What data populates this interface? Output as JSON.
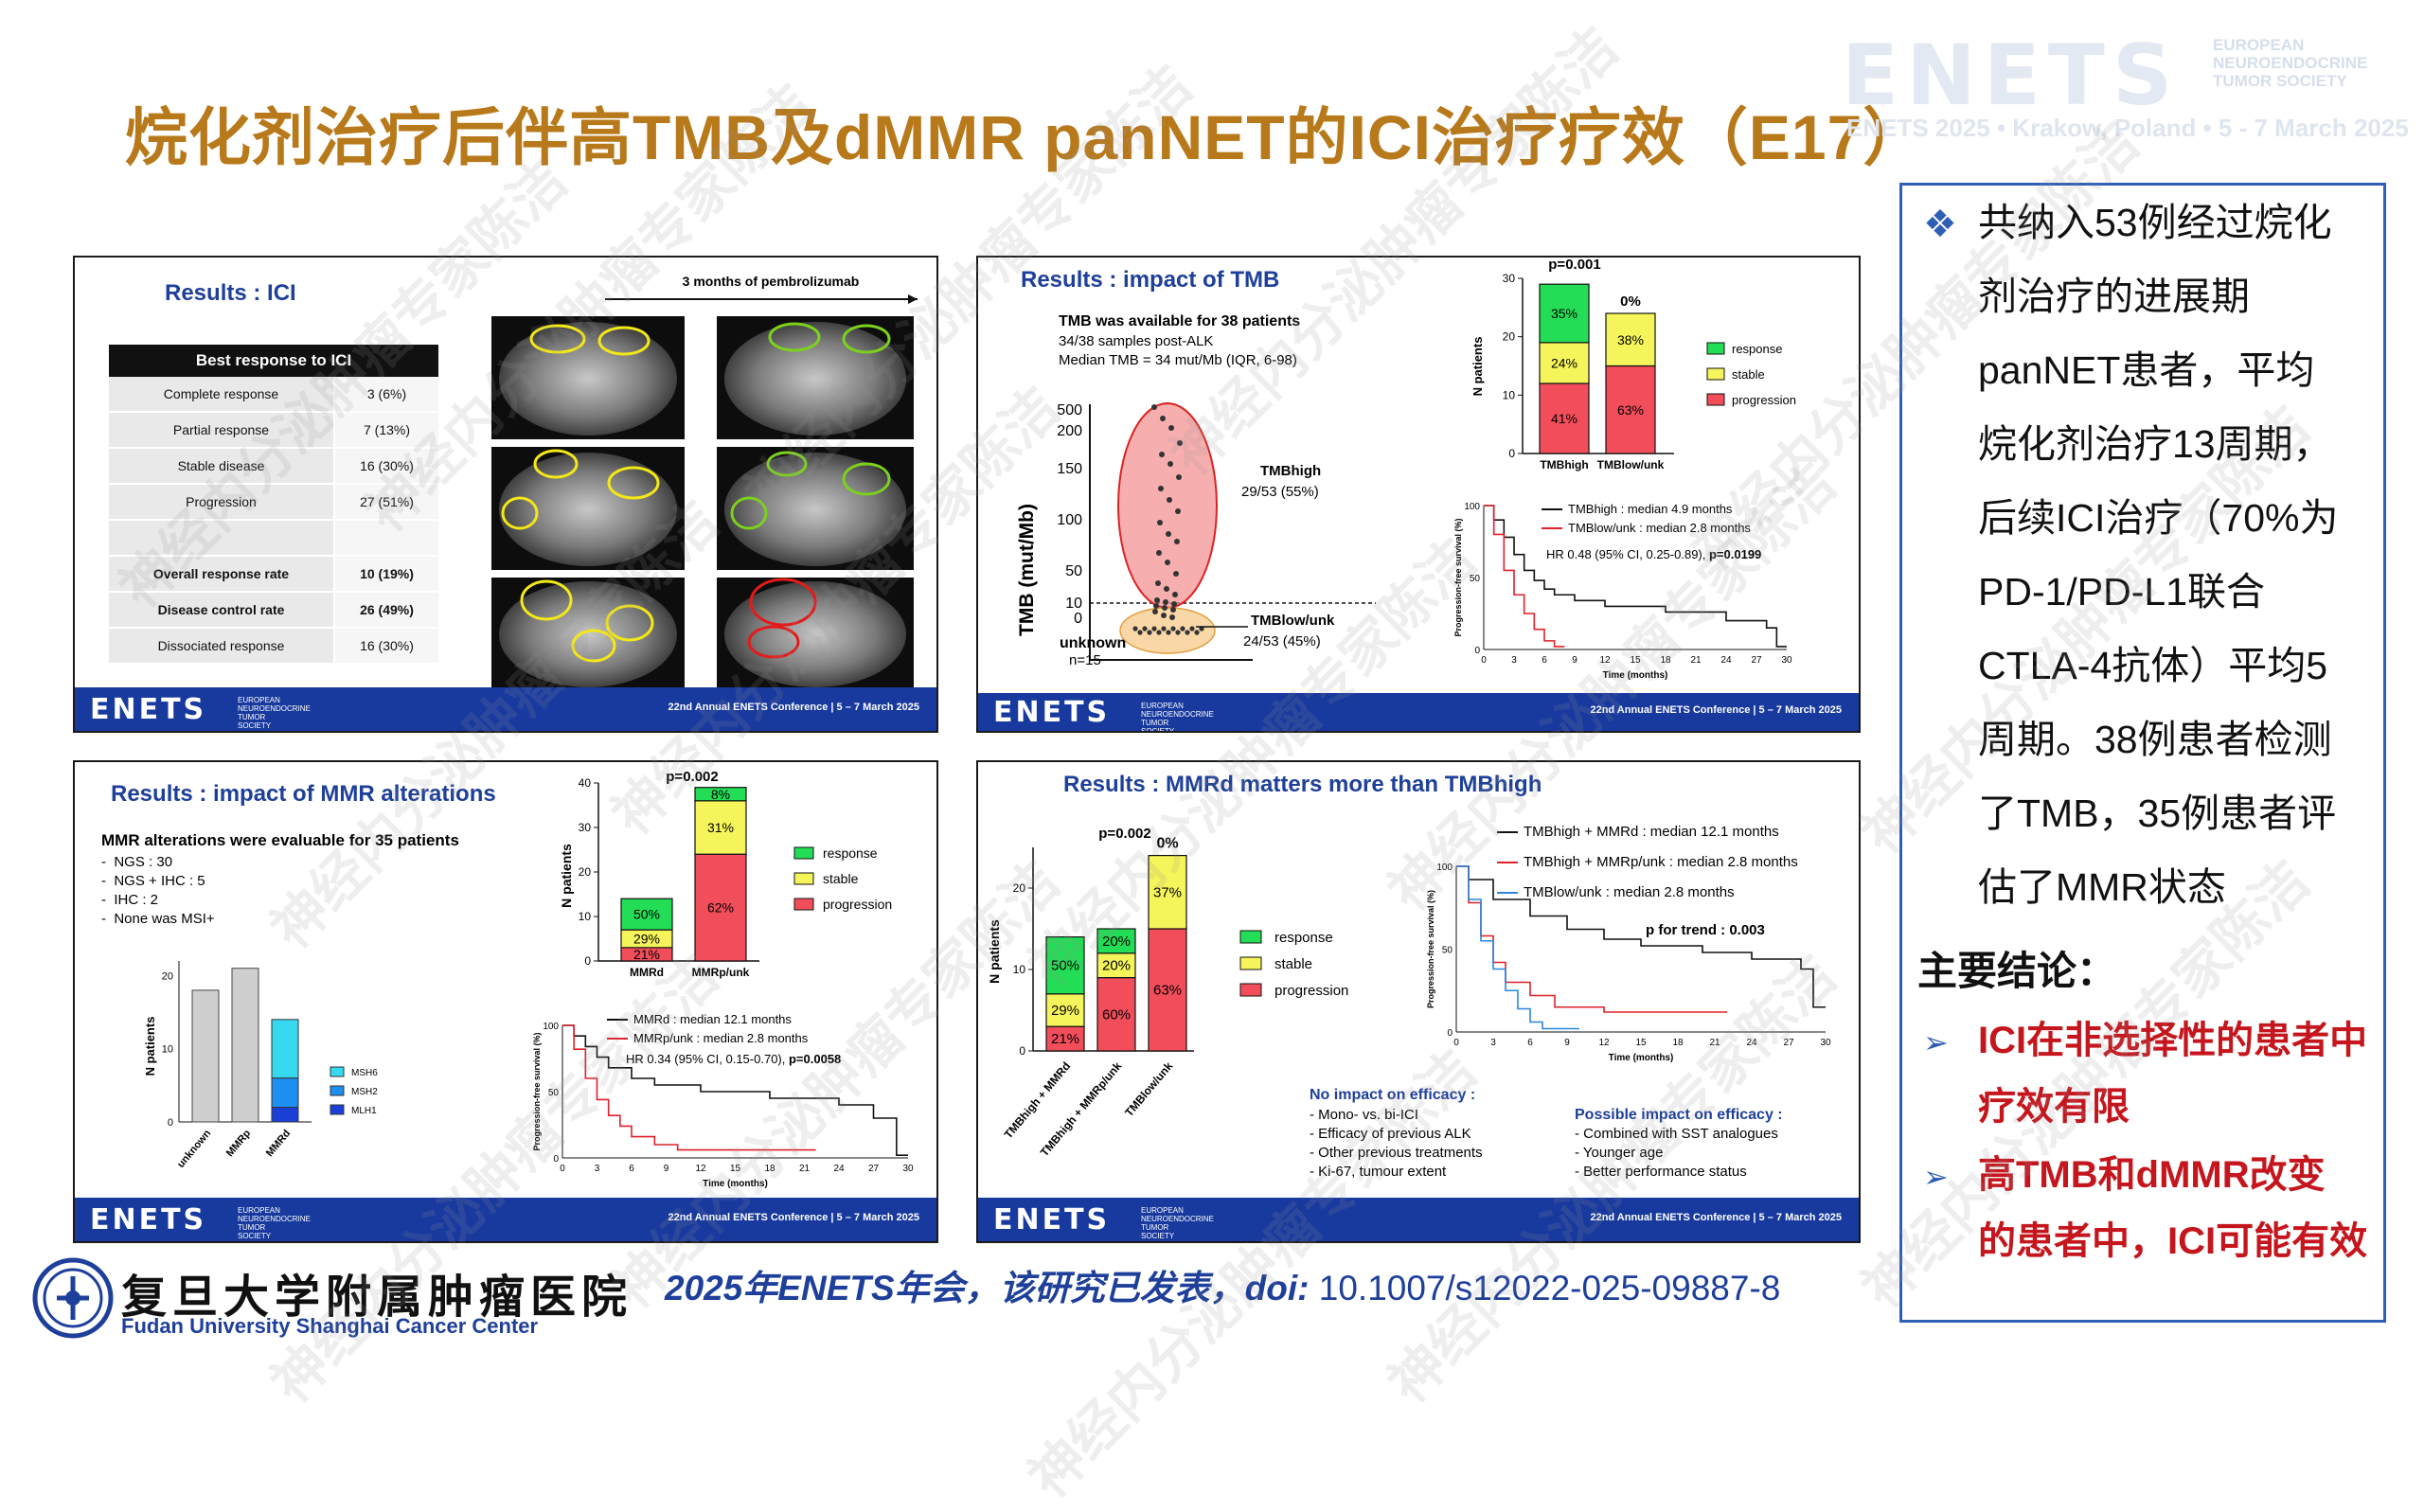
{
  "title": "烷化剂治疗后伴高TMB及dMMR panNET的ICI治疗疗效（E17）",
  "header": {
    "brand": "ENETS",
    "society": [
      "EUROPEAN",
      "NEUROENDOCRINE",
      "TUMOR SOCIETY"
    ],
    "event": "ENETS 2025  •  Krakow, Poland  •  5 - 7 March 2025"
  },
  "watermark": "神经内分泌肿瘤专家陈洁",
  "panel_footer": {
    "brand": "ENETS",
    "society": "EUROPEAN NEUROENDOCRINE TUMOR SOCIETY",
    "conference": "22nd Annual ENETS Conference | 5 – 7 March 2025"
  },
  "panel1": {
    "heading": "Results : ICI",
    "scan_label": "3 months of pembrolizumab",
    "table_header": "Best response to ICI",
    "rows": [
      {
        "label": "Complete response",
        "value": "3 (6%)"
      },
      {
        "label": "Partial response",
        "value": "7 (13%)"
      },
      {
        "label": "Stable disease",
        "value": "16 (30%)"
      },
      {
        "label": "Progression",
        "value": "27 (51%)"
      },
      {
        "label": "",
        "value": ""
      },
      {
        "label": "Overall response rate",
        "value": "10 (19%)"
      },
      {
        "label": "Disease control rate",
        "value": "26 (49%)"
      },
      {
        "label": "Dissociated response",
        "value": "16 (30%)"
      }
    ]
  },
  "panel2": {
    "heading": "Results : impact of TMB",
    "note_title": "TMB was available for 38 patients",
    "note_lines": [
      "34/38 samples post-ALK",
      "Median TMB = 34 mut/Mb (IQR, 6-98)"
    ],
    "yaxis": "TMB (mut/Mb)",
    "yticks": [
      "500",
      "200",
      "150",
      "100",
      "50",
      "10",
      "0"
    ],
    "unknown": "unknown",
    "unknown_n": "n=15",
    "high_label": "TMBhigh",
    "high_count": "29/53 (55%)",
    "low_label": "TMBlow/unk",
    "low_count": "24/53 (45%)",
    "bar_pvalue": "p=0.001",
    "bar_yaxis": "N patients",
    "bar_yticks": [
      "30",
      "20",
      "10",
      "0"
    ],
    "bars": [
      {
        "name": "TMBhigh",
        "response": "35%",
        "stable": "24%",
        "progression": "41%",
        "top": ""
      },
      {
        "name": "TMBlow/unk",
        "response": "",
        "stable": "38%",
        "progression": "63%",
        "top": "0%"
      }
    ],
    "legend": [
      "response",
      "stable",
      "progression"
    ],
    "km_legend": [
      "TMBhigh : median 4.9 months",
      "TMBlow/unk : median 2.8 months"
    ],
    "km_hr": "HR 0.48 (95% CI, 0.25-0.89), ",
    "km_p": "p=0.0199",
    "km_yaxis": "Progression-free survival (%)",
    "km_xaxis": "Time (months)",
    "km_yticks": [
      "100",
      "50",
      "0"
    ],
    "km_xticks": [
      "0",
      "3",
      "6",
      "9",
      "12",
      "15",
      "18",
      "21",
      "24",
      "27",
      "30"
    ]
  },
  "panel3": {
    "heading": "Results : impact of MMR alterations",
    "note_title": "MMR alterations were evaluable for 35 patients",
    "note_lines": [
      "NGS : 30",
      "NGS + IHC : 5",
      "IHC : 2",
      "None was MSI+"
    ],
    "small_yaxis": "N patients",
    "small_yticks": [
      "20",
      "10",
      "0"
    ],
    "small_bars": [
      "unknown",
      "MMRp",
      "MMRd"
    ],
    "small_legend": [
      "MSH6",
      "MSH2",
      "MLH1"
    ],
    "bar_pvalue": "p=0.002",
    "bar_yaxis": "N patients",
    "bar_yticks": [
      "40",
      "30",
      "20",
      "10",
      "0"
    ],
    "bars": [
      {
        "name": "MMRd",
        "response": "50%",
        "stable": "29%",
        "progression": "21%"
      },
      {
        "name": "MMRp/unk",
        "response": "8%",
        "stable": "31%",
        "progression": "62%"
      }
    ],
    "legend": [
      "response",
      "stable",
      "progression"
    ],
    "km_legend": [
      "MMRd : median 12.1 months",
      "MMRp/unk : median 2.8 months"
    ],
    "km_hr": "HR 0.34 (95% CI, 0.15-0.70), ",
    "km_p": "p=0.0058",
    "km_yaxis": "Progression-free survival (%)",
    "km_xaxis": "Time (months)",
    "km_yticks": [
      "100",
      "50",
      "0"
    ],
    "km_xticks": [
      "0",
      "3",
      "6",
      "9",
      "12",
      "15",
      "18",
      "21",
      "24",
      "27",
      "30"
    ]
  },
  "panel4": {
    "heading": "Results : MMRd matters more than TMBhigh",
    "bar_pvalue": "p=0.002",
    "bar_yaxis": "N patients",
    "bar_yticks": [
      "20",
      "10",
      "0"
    ],
    "bars": [
      {
        "name": "TMBhigh + MMRd",
        "response": "50%",
        "stable": "29%",
        "progression": "21%",
        "top": ""
      },
      {
        "name": "TMBhigh + MMRp/unk",
        "response": "20%",
        "stable": "20%",
        "progression": "60%",
        "top": ""
      },
      {
        "name": "TMBlow/unk",
        "response": "",
        "stable": "37%",
        "progression": "63%",
        "top": "0%"
      }
    ],
    "legend": [
      "response",
      "stable",
      "progression"
    ],
    "km_legend": [
      "TMBhigh + MMRd : median 12.1 months",
      "TMBhigh + MMRp/unk : median 2.8 months",
      "TMBlow/unk : median 2.8 months"
    ],
    "km_p": "p for trend : 0.003",
    "km_yaxis": "Progression-free survival (%)",
    "km_xaxis": "Time (months)",
    "km_yticks": [
      "100",
      "50",
      "0"
    ],
    "km_xticks": [
      "0",
      "3",
      "6",
      "9",
      "12",
      "15",
      "18",
      "21",
      "24",
      "27",
      "30"
    ],
    "no_impact_title": "No impact on efficacy :",
    "no_impact": [
      "Mono- vs. bi-ICI",
      "Efficacy of previous ALK",
      "Other previous treatments",
      "Ki-67, tumour extent"
    ],
    "possible_title": "Possible impact on efficacy :",
    "possible": [
      "Combined with SST analogues",
      "Younger age",
      "Better performance status"
    ]
  },
  "sidebar": {
    "bullet_lines": [
      "共纳入53例经过烷化",
      "剂治疗的进展期",
      "panNET患者，平均",
      "烷化剂治疗13周期，",
      "后续ICI治疗（70%为",
      "PD-1/PD-L1联合",
      "CTLA-4抗体）平均5",
      "周期。38例患者检测",
      "了TMB，35例患者评",
      "估了MMR状态"
    ],
    "conclusion_title": "主要结论：",
    "conclusion1": [
      "ICI在非选择性的患者中",
      "疗效有限"
    ],
    "conclusion2": [
      "高TMB和dMMR改变",
      "的患者中，ICI可能有效"
    ]
  },
  "footer": {
    "citation_prefix": "2025年ENETS年会，该研究已发表，doi:",
    "citation_doi": " 10.1007/s12022-025-09887-8",
    "logo_cn": "复旦大学附属肿瘤医院",
    "logo_en": "Fudan University Shanghai Cancer Center"
  },
  "colors": {
    "title": "#b8791b",
    "accent": "#1e3f9a",
    "response": "#22dd55",
    "stable": "#f5f45a",
    "progression": "#f24d5a",
    "conclusion": "#c5161d"
  }
}
